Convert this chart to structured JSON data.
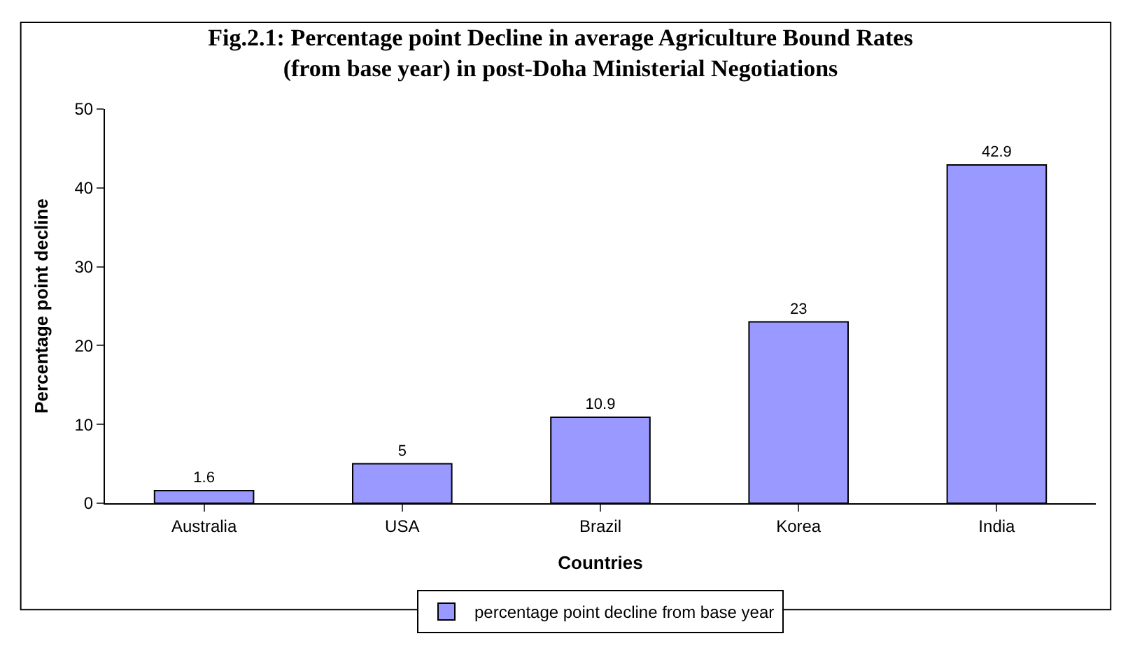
{
  "chart_data": {
    "type": "bar",
    "title": "Fig.2.1: Percentage point Decline in average Agriculture Bound Rates\n(from base year) in post-Doha Ministerial Negotiations",
    "xlabel": "Countries",
    "ylabel": "Percentage point decline",
    "categories": [
      "Australia",
      "USA",
      "Brazil",
      "Korea",
      "India"
    ],
    "series": [
      {
        "name": "percentage point decline from base year",
        "color": "#9999ff",
        "values": [
          1.6,
          5,
          10.9,
          23,
          42.9
        ]
      }
    ],
    "ylim": [
      0,
      50
    ],
    "yticks": [
      0,
      10,
      20,
      30,
      40,
      50
    ],
    "grid": false,
    "legend": "bottom",
    "data_labels": true
  }
}
